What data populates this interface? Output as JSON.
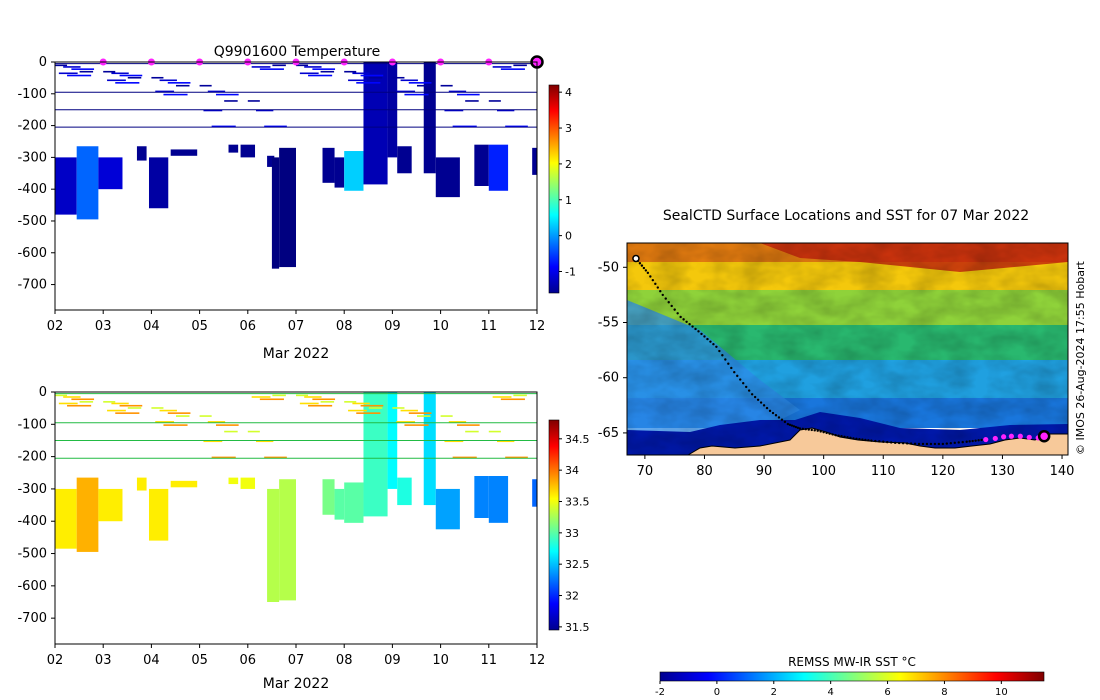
{
  "temperature_plot": {
    "title": "Q9901600  Temperature",
    "xlabel": "Mar 2022",
    "xticks": [
      "02",
      "03",
      "04",
      "05",
      "06",
      "07",
      "08",
      "09",
      "10",
      "11",
      "12"
    ],
    "yticks": [
      "0",
      "-100",
      "-200",
      "-300",
      "-400",
      "-500",
      "-600",
      "-700"
    ],
    "colorbar_ticks": [
      "4",
      "3",
      "2",
      "1",
      "0",
      "-1"
    ]
  },
  "salinity_plot": {
    "xlabel": "Mar 2022",
    "xticks": [
      "02",
      "03",
      "04",
      "05",
      "06",
      "07",
      "08",
      "09",
      "10",
      "11",
      "12"
    ],
    "yticks": [
      "0",
      "-100",
      "-200",
      "-300",
      "-400",
      "-500",
      "-600",
      "-700"
    ],
    "colorbar_ticks": [
      "34.5",
      "34",
      "33.5",
      "33",
      "32.5",
      "32",
      "31.5"
    ]
  },
  "map": {
    "title": "SealCTD Surface Locations and SST for 07 Mar 2022",
    "xticks": [
      "70",
      "80",
      "90",
      "100",
      "110",
      "120",
      "130",
      "140"
    ],
    "yticks": [
      "-50",
      "-55",
      "-60",
      "-65"
    ],
    "credit": "© IMOS 26-Aug-2024 17:55 Hobart",
    "colorbar_label": "REMSS MW-IR SST °C",
    "colorbar_ticks": [
      "-2",
      "0",
      "2",
      "4",
      "6",
      "8",
      "10"
    ]
  },
  "colors": {
    "ocean_land": "#f7c99a",
    "marker_magenta": "#ff22ff",
    "track": "#000000"
  },
  "chart_data": [
    {
      "type": "heatmap",
      "title": "Q9901600  Temperature",
      "xlabel": "Mar 2022",
      "ylabel": "",
      "x_range": [
        2,
        12
      ],
      "y_range": [
        -780,
        0
      ],
      "color_range": [
        -1.6,
        4.2
      ],
      "colormap": "jet",
      "surface_markers_day": [
        3,
        4,
        5,
        6,
        7,
        8,
        9,
        10,
        11
      ],
      "current_position_day": 12,
      "profiles": [
        {
          "x0": 2.0,
          "x1": 2.45,
          "top": -300,
          "bottom": -480,
          "value": -1.2
        },
        {
          "x0": 2.45,
          "x1": 2.9,
          "top": -265,
          "bottom": -495,
          "value": -0.3
        },
        {
          "x0": 2.9,
          "x1": 3.4,
          "top": -300,
          "bottom": -400,
          "value": -1.1
        },
        {
          "x0": 3.7,
          "x1": 3.9,
          "top": -265,
          "bottom": -310,
          "value": -1.5
        },
        {
          "x0": 3.95,
          "x1": 4.35,
          "top": -300,
          "bottom": -460,
          "value": -1.4
        },
        {
          "x0": 4.4,
          "x1": 4.95,
          "top": -275,
          "bottom": -295,
          "value": -1.5
        },
        {
          "x0": 5.6,
          "x1": 5.8,
          "top": -260,
          "bottom": -285,
          "value": -1.5
        },
        {
          "x0": 5.85,
          "x1": 6.15,
          "top": -260,
          "bottom": -300,
          "value": -1.5
        },
        {
          "x0": 6.4,
          "x1": 6.55,
          "top": -295,
          "bottom": -330,
          "value": -1.5
        },
        {
          "x0": 6.5,
          "x1": 6.65,
          "top": -300,
          "bottom": -650,
          "value": -1.6
        },
        {
          "x0": 6.65,
          "x1": 7.0,
          "top": -270,
          "bottom": -645,
          "value": -1.6
        },
        {
          "x0": 7.55,
          "x1": 7.8,
          "top": -270,
          "bottom": -380,
          "value": -1.5
        },
        {
          "x0": 7.8,
          "x1": 8.0,
          "top": -300,
          "bottom": -395,
          "value": -1.5
        },
        {
          "x0": 8.0,
          "x1": 8.4,
          "top": -280,
          "bottom": -405,
          "value": 0.3
        },
        {
          "x0": 8.4,
          "x1": 8.9,
          "top": 0,
          "bottom": -385,
          "value": -1.3
        },
        {
          "x0": 8.9,
          "x1": 9.1,
          "top": 0,
          "bottom": -300,
          "value": -1.4
        },
        {
          "x0": 9.1,
          "x1": 9.4,
          "top": -265,
          "bottom": -350,
          "value": -1.5
        },
        {
          "x0": 9.65,
          "x1": 9.9,
          "top": 0,
          "bottom": -350,
          "value": -1.5
        },
        {
          "x0": 9.9,
          "x1": 10.4,
          "top": -300,
          "bottom": -425,
          "value": -1.5
        },
        {
          "x0": 10.7,
          "x1": 11.0,
          "top": -260,
          "bottom": -390,
          "value": -1.5
        },
        {
          "x0": 11.0,
          "x1": 11.4,
          "top": -260,
          "bottom": -405,
          "value": -0.7
        },
        {
          "x0": 11.9,
          "x1": 12.0,
          "top": -270,
          "bottom": -355,
          "value": -1.5
        }
      ]
    },
    {
      "type": "heatmap",
      "title": "",
      "xlabel": "Mar 2022",
      "ylabel": "",
      "x_range": [
        2,
        12
      ],
      "y_range": [
        -780,
        0
      ],
      "color_range": [
        31.45,
        34.8
      ],
      "colormap": "jet",
      "profiles": [
        {
          "x0": 2.0,
          "x1": 2.45,
          "top": -300,
          "bottom": -485,
          "value": 33.6
        },
        {
          "x0": 2.45,
          "x1": 2.9,
          "top": -265,
          "bottom": -495,
          "value": 33.8
        },
        {
          "x0": 2.9,
          "x1": 3.4,
          "top": -300,
          "bottom": -400,
          "value": 33.6
        },
        {
          "x0": 3.7,
          "x1": 3.9,
          "top": -265,
          "bottom": -305,
          "value": 33.6
        },
        {
          "x0": 3.95,
          "x1": 4.35,
          "top": -300,
          "bottom": -460,
          "value": 33.6
        },
        {
          "x0": 4.4,
          "x1": 4.95,
          "top": -275,
          "bottom": -295,
          "value": 33.6
        },
        {
          "x0": 5.6,
          "x1": 5.8,
          "top": -265,
          "bottom": -285,
          "value": 33.5
        },
        {
          "x0": 5.85,
          "x1": 6.15,
          "top": -265,
          "bottom": -300,
          "value": 33.5
        },
        {
          "x0": 6.4,
          "x1": 6.65,
          "top": -300,
          "bottom": -650,
          "value": 33.3
        },
        {
          "x0": 6.65,
          "x1": 7.0,
          "top": -270,
          "bottom": -645,
          "value": 33.3
        },
        {
          "x0": 7.55,
          "x1": 7.8,
          "top": -270,
          "bottom": -380,
          "value": 33.1
        },
        {
          "x0": 7.8,
          "x1": 8.0,
          "top": -300,
          "bottom": -395,
          "value": 33.0
        },
        {
          "x0": 8.0,
          "x1": 8.4,
          "top": -280,
          "bottom": -405,
          "value": 33.0
        },
        {
          "x0": 8.4,
          "x1": 8.9,
          "top": 0,
          "bottom": -385,
          "value": 32.9
        },
        {
          "x0": 8.9,
          "x1": 9.1,
          "top": 0,
          "bottom": -300,
          "value": 32.7
        },
        {
          "x0": 9.1,
          "x1": 9.4,
          "top": -265,
          "bottom": -350,
          "value": 32.8
        },
        {
          "x0": 9.65,
          "x1": 9.9,
          "top": 0,
          "bottom": -350,
          "value": 32.6
        },
        {
          "x0": 9.9,
          "x1": 10.4,
          "top": -300,
          "bottom": -425,
          "value": 32.4
        },
        {
          "x0": 10.7,
          "x1": 11.0,
          "top": -260,
          "bottom": -390,
          "value": 32.3
        },
        {
          "x0": 11.0,
          "x1": 11.4,
          "top": -260,
          "bottom": -405,
          "value": 32.3
        },
        {
          "x0": 11.9,
          "x1": 12.0,
          "top": -270,
          "bottom": -355,
          "value": 32.2
        }
      ]
    },
    {
      "type": "heatmap",
      "title": "SealCTD Surface Locations and SST for 07 Mar 2022",
      "xlabel": "",
      "ylabel": "",
      "x_range": [
        67,
        141
      ],
      "y_range": [
        -67,
        -47.8
      ],
      "color_range": [
        -2,
        11.5
      ],
      "colorbar_label": "REMSS MW-IR SST °C",
      "track": [
        [
          68.5,
          -49.2
        ],
        [
          70.5,
          -50.5
        ],
        [
          73,
          -52.5
        ],
        [
          76,
          -54.5
        ],
        [
          79,
          -55.8
        ],
        [
          82,
          -57.2
        ],
        [
          85,
          -59.5
        ],
        [
          88,
          -61.5
        ],
        [
          91,
          -63
        ],
        [
          94,
          -64.2
        ],
        [
          96,
          -64.6
        ],
        [
          99,
          -64.8
        ],
        [
          102,
          -65.2
        ],
        [
          105,
          -65.5
        ],
        [
          108,
          -65.7
        ],
        [
          112,
          -65.9
        ],
        [
          116,
          -66.0
        ],
        [
          120,
          -66.0
        ],
        [
          124,
          -65.8
        ],
        [
          127,
          -65.6
        ]
      ],
      "surface_markers": [
        [
          127.2,
          -65.6
        ],
        [
          128.8,
          -65.5
        ],
        [
          130.2,
          -65.35
        ],
        [
          131.5,
          -65.3
        ],
        [
          133,
          -65.3
        ],
        [
          134.5,
          -65.4
        ],
        [
          136,
          -65.45
        ]
      ],
      "current_position": [
        137,
        -65.3
      ]
    }
  ]
}
